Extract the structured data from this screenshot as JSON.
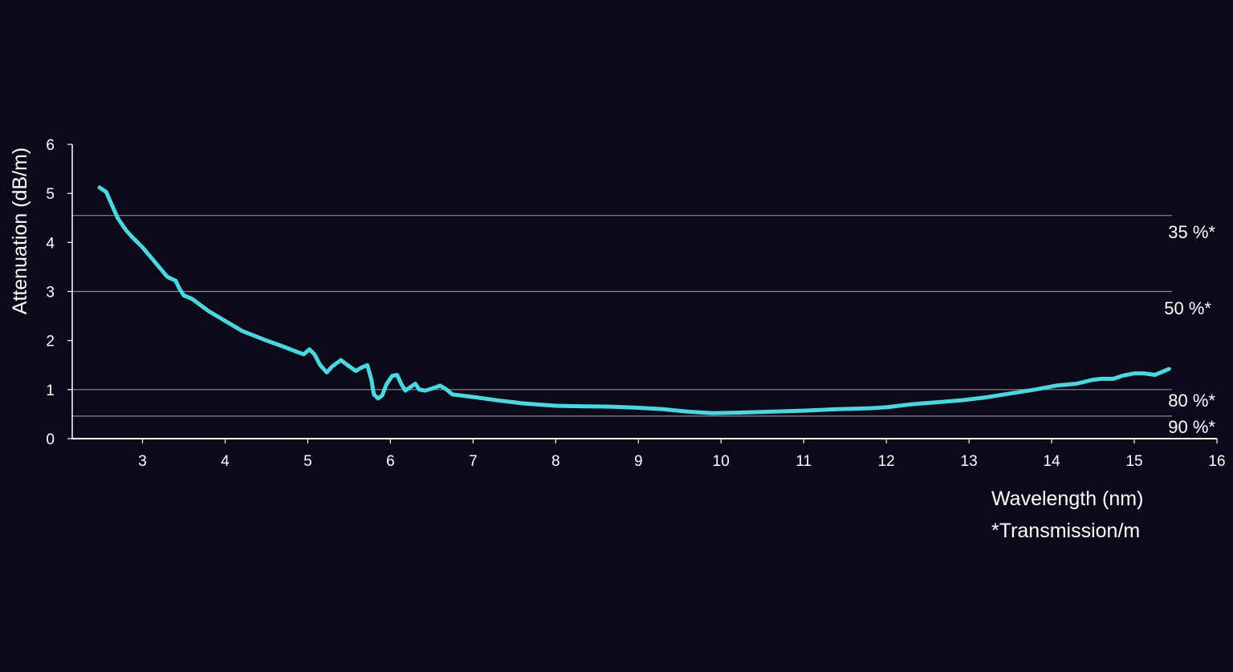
{
  "chart_data": {
    "type": "line",
    "ylabel": "Attenuation (dB/m)",
    "xlabel": "Wavelength (nm)",
    "footnote": "*Transmission/m",
    "xlim": [
      2.15,
      16
    ],
    "ylim": [
      0,
      6
    ],
    "x_ticks": [
      3,
      4,
      5,
      6,
      7,
      8,
      9,
      10,
      11,
      12,
      13,
      14,
      15,
      16
    ],
    "y_ticks": [
      0,
      1,
      2,
      3,
      4,
      5,
      6
    ],
    "grid": "none",
    "reference_lines": [
      {
        "value": 4.55,
        "label": "35 %*"
      },
      {
        "value": 3.0,
        "label": "50 %*"
      },
      {
        "value": 1.0,
        "label": "80 %*"
      },
      {
        "value": 0.46,
        "label": "90 %*"
      }
    ],
    "colors": {
      "background": "#0a0a1a",
      "line": "#4dd6e0",
      "axis": "#ffffff",
      "reference": "#8a8a96",
      "text": "#ffffff"
    },
    "series": [
      {
        "x": [
          2.48,
          2.56,
          2.62,
          2.7,
          2.8,
          2.88,
          3.0,
          3.15,
          3.3,
          3.4,
          3.45,
          3.5,
          3.6,
          3.8,
          4.0,
          4.2,
          4.5,
          4.7,
          4.85,
          4.95,
          5.02,
          5.08,
          5.15,
          5.23,
          5.3,
          5.4,
          5.48,
          5.58,
          5.65,
          5.72,
          5.77,
          5.8,
          5.85,
          5.9,
          5.95,
          6.02,
          6.08,
          6.13,
          6.18,
          6.24,
          6.3,
          6.35,
          6.42,
          6.5,
          6.6,
          6.68,
          6.75,
          7.0,
          7.3,
          7.6,
          8.0,
          8.3,
          8.7,
          9.0,
          9.3,
          9.6,
          9.9,
          10.2,
          10.6,
          11.0,
          11.4,
          11.8,
          12.0,
          12.3,
          12.6,
          12.9,
          13.2,
          13.5,
          13.8,
          14.05,
          14.3,
          14.5,
          14.6,
          14.75,
          14.85,
          15.0,
          15.12,
          15.25,
          15.32,
          15.42
        ],
        "y": [
          5.12,
          5.03,
          4.8,
          4.5,
          4.25,
          4.1,
          3.9,
          3.6,
          3.3,
          3.22,
          3.05,
          2.92,
          2.85,
          2.6,
          2.4,
          2.2,
          2.0,
          1.88,
          1.78,
          1.72,
          1.82,
          1.72,
          1.5,
          1.35,
          1.48,
          1.6,
          1.5,
          1.38,
          1.45,
          1.5,
          1.2,
          0.9,
          0.82,
          0.88,
          1.1,
          1.28,
          1.3,
          1.12,
          0.98,
          1.05,
          1.12,
          1.0,
          0.98,
          1.02,
          1.08,
          1.0,
          0.9,
          0.85,
          0.78,
          0.72,
          0.67,
          0.66,
          0.65,
          0.63,
          0.6,
          0.55,
          0.52,
          0.53,
          0.55,
          0.57,
          0.6,
          0.62,
          0.64,
          0.7,
          0.74,
          0.78,
          0.84,
          0.92,
          1.0,
          1.08,
          1.12,
          1.2,
          1.22,
          1.22,
          1.28,
          1.33,
          1.33,
          1.3,
          1.35,
          1.42
        ]
      }
    ]
  }
}
